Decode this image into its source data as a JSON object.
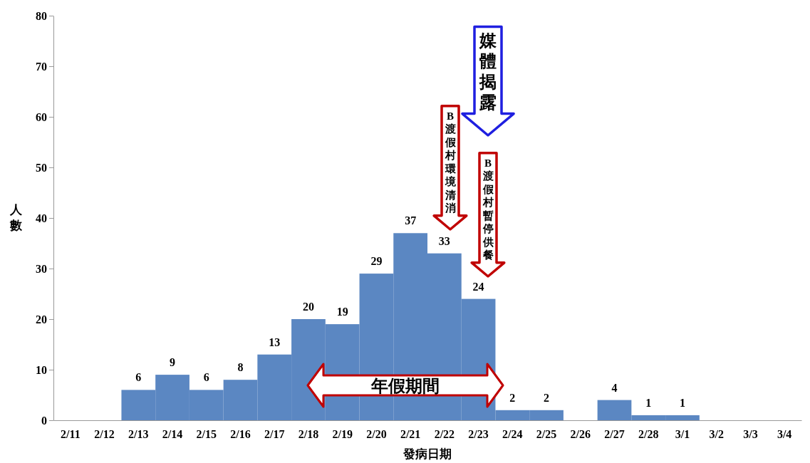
{
  "chart_data": {
    "type": "bar",
    "xlabel": "發病日期",
    "ylabel": "人數",
    "categories": [
      "2/11",
      "2/12",
      "2/13",
      "2/14",
      "2/15",
      "2/16",
      "2/17",
      "2/18",
      "2/19",
      "2/20",
      "2/21",
      "2/22",
      "2/23",
      "2/24",
      "2/25",
      "2/26",
      "2/27",
      "2/28",
      "3/1",
      "3/2",
      "3/3",
      "3/4"
    ],
    "values": [
      0,
      0,
      6,
      9,
      6,
      8,
      13,
      20,
      19,
      29,
      37,
      33,
      24,
      2,
      2,
      0,
      4,
      1,
      1,
      0,
      0,
      0
    ],
    "value_labels": [
      null,
      null,
      "6",
      "9",
      "6",
      "8",
      "13",
      "20",
      "19",
      "29",
      "37",
      "33",
      "24",
      "2",
      "2",
      null,
      "4",
      "1",
      "1",
      null,
      null,
      null
    ],
    "color": "#5b87c2",
    "ylim": [
      0,
      80
    ],
    "yticks": [
      0,
      10,
      20,
      30,
      40,
      50,
      60,
      70,
      80
    ],
    "annotations": [
      "年假期間",
      "B渡假村環境清消",
      "B渡假村暫停供餐",
      "媒體揭露"
    ]
  }
}
